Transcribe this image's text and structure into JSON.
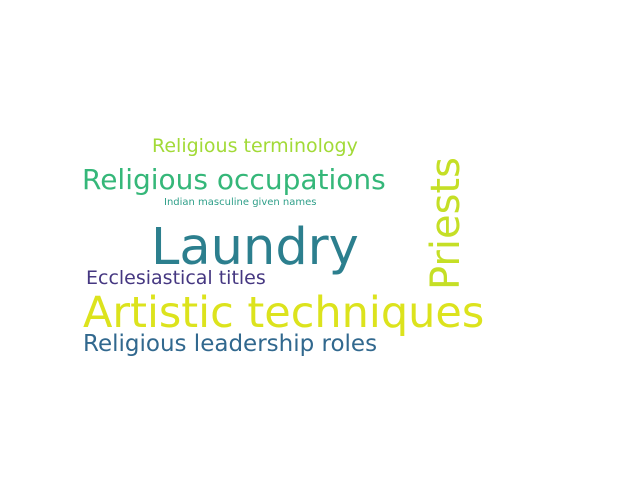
{
  "word_cloud": {
    "words": [
      {
        "text": "Laundry",
        "color": "#2c7f8e"
      },
      {
        "text": "Artistic techniques",
        "color": "#dce31d"
      },
      {
        "text": "Priests",
        "color": "#c5df26"
      },
      {
        "text": "Religious occupations",
        "color": "#35b779"
      },
      {
        "text": "Religious leadership roles",
        "color": "#31688e"
      },
      {
        "text": "Ecclesiastical titles",
        "color": "#453781"
      },
      {
        "text": "Religious terminology",
        "color": "#a2da37"
      },
      {
        "text": "Indian masculine given names",
        "color": "#2f9f89"
      }
    ]
  }
}
